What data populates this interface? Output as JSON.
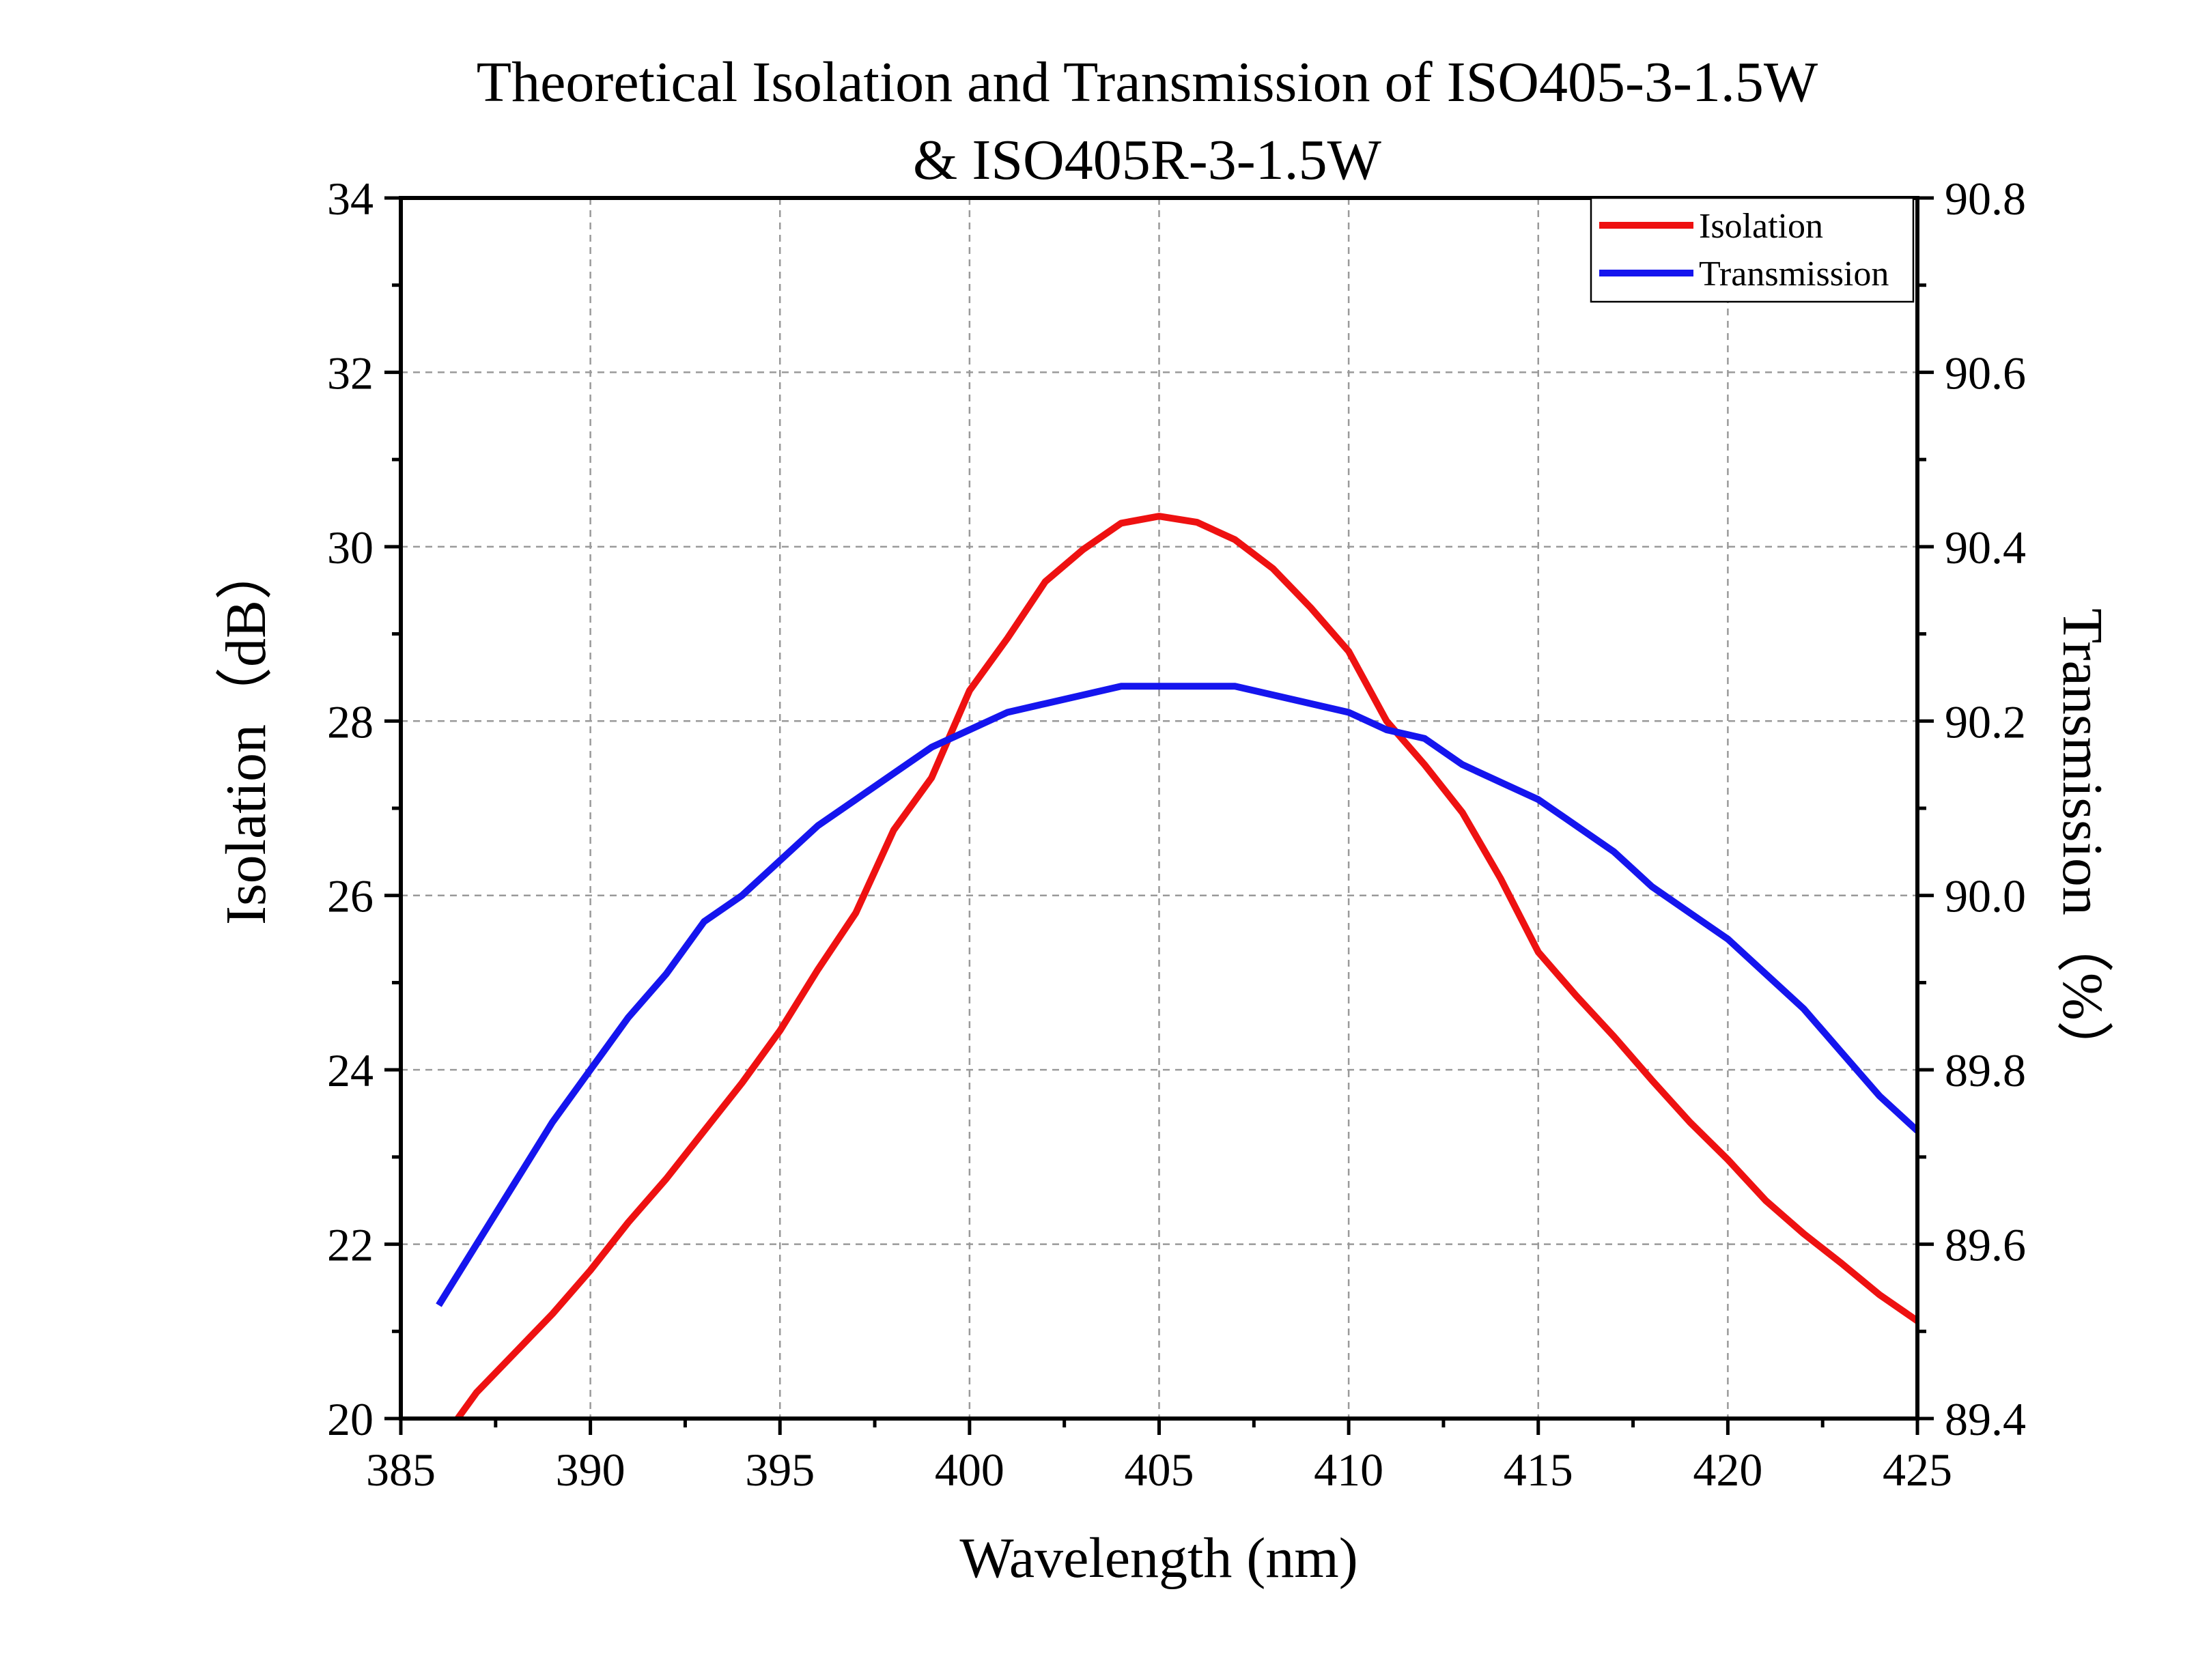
{
  "chart_data": {
    "type": "line",
    "title": [
      "Theoretical Isolation and Transmission of ISO405-3-1.5W",
      "& ISO405R-3-1.5W"
    ],
    "xlabel": "Wavelength (nm)",
    "ylabel_left": "Isolation（dB）",
    "ylabel_right": "Transmission（%）",
    "xlim": [
      385,
      425
    ],
    "ylim_left": [
      20,
      34
    ],
    "ylim_right": [
      89.4,
      90.8
    ],
    "xticks": [
      385,
      390,
      395,
      400,
      405,
      410,
      415,
      420,
      425
    ],
    "xtick_labels": [
      "385",
      "390",
      "395",
      "400",
      "405",
      "410",
      "415",
      "420",
      "425"
    ],
    "yticks_left": [
      20,
      22,
      24,
      26,
      28,
      30,
      32,
      34
    ],
    "ytick_labels_left": [
      "20",
      "22",
      "24",
      "26",
      "28",
      "30",
      "32",
      "34"
    ],
    "yticks_right": [
      89.4,
      89.6,
      89.8,
      90.0,
      90.2,
      90.4,
      90.6,
      90.8
    ],
    "ytick_labels_right": [
      "89.4",
      "89.6",
      "89.8",
      "90.0",
      "90.2",
      "90.4",
      "90.6",
      "90.8"
    ],
    "grid": true,
    "legend_position": "top-right",
    "series": [
      {
        "name": "Isolation",
        "axis": "left",
        "color": "#ee1111",
        "x": [
          386.5,
          387,
          388,
          389,
          390,
          391,
          392,
          393,
          394,
          395,
          396,
          397,
          398,
          399,
          400,
          401,
          402,
          403,
          404,
          405,
          406,
          407,
          408,
          409,
          410,
          411,
          412,
          413,
          414,
          415,
          416,
          417,
          418,
          419,
          420,
          421,
          422,
          423,
          424,
          425
        ],
        "values": [
          20.0,
          20.3,
          20.75,
          21.2,
          21.7,
          22.25,
          22.75,
          23.3,
          23.85,
          24.45,
          25.15,
          25.8,
          26.75,
          27.35,
          28.35,
          28.95,
          29.6,
          29.97,
          30.27,
          30.35,
          30.28,
          30.08,
          29.75,
          29.3,
          28.8,
          28.0,
          27.5,
          26.95,
          26.2,
          25.35,
          24.85,
          24.38,
          23.88,
          23.4,
          22.97,
          22.5,
          22.12,
          21.78,
          21.42,
          21.12
        ]
      },
      {
        "name": "Transmission",
        "axis": "right",
        "color": "#1515ee",
        "x": [
          386,
          387,
          388,
          389,
          390,
          391,
          392,
          393,
          394,
          395,
          396,
          397,
          398,
          399,
          400,
          401,
          402,
          403,
          404,
          405,
          406,
          407,
          408,
          409,
          410,
          411,
          412,
          413,
          414,
          415,
          416,
          417,
          418,
          419,
          420,
          421,
          422,
          423,
          424,
          425
        ],
        "values": [
          89.53,
          89.6,
          89.67,
          89.74,
          89.8,
          89.86,
          89.91,
          89.97,
          90.0,
          90.04,
          90.08,
          90.11,
          90.14,
          90.17,
          90.19,
          90.21,
          90.22,
          90.23,
          90.24,
          90.24,
          90.24,
          90.24,
          90.23,
          90.22,
          90.21,
          90.19,
          90.18,
          90.15,
          90.13,
          90.11,
          90.08,
          90.05,
          90.01,
          89.98,
          89.95,
          89.91,
          89.87,
          89.82,
          89.77,
          89.73
        ]
      }
    ]
  }
}
